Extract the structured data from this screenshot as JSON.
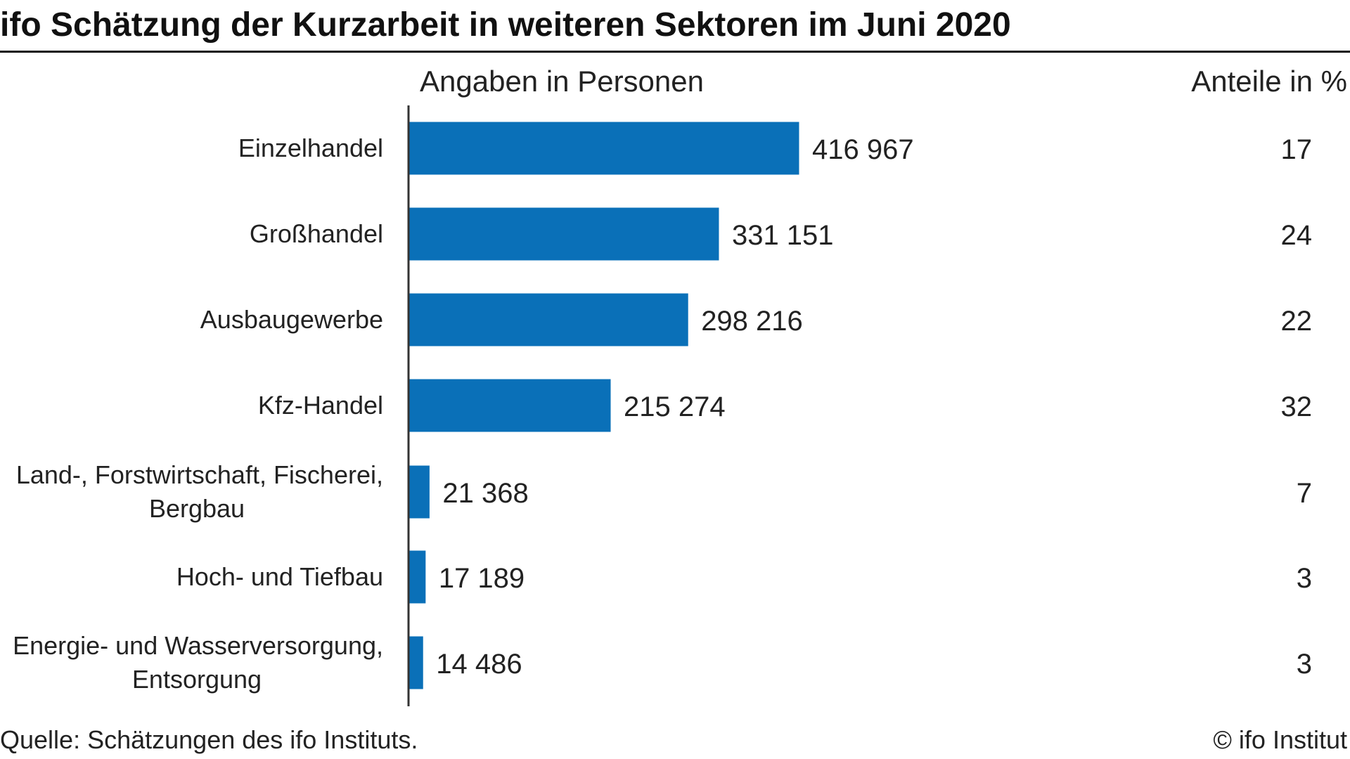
{
  "title": "ifo Schätzung der Kurzarbeit in weiteren Sektoren im Juni 2020",
  "header_left": "Angaben in Personen",
  "header_right": "Anteile in %",
  "source": "Quelle: Schätzungen des ifo Instituts.",
  "copyright": "© ifo Institut",
  "colors": {
    "bar": "#0a70b8",
    "axis": "#333333",
    "text": "#222222"
  },
  "chart_data": {
    "type": "bar",
    "orientation": "horizontal",
    "categories": [
      [
        "Einzelhandel"
      ],
      [
        "Großhandel"
      ],
      [
        "Ausbaugewerbe"
      ],
      [
        "Kfz-Handel"
      ],
      [
        "Land-, Forstwirtschaft, Fischerei,",
        "Bergbau"
      ],
      [
        "Hoch- und Tiefbau"
      ],
      [
        "Energie- und Wasserversorgung,",
        "Entsorgung"
      ]
    ],
    "values": [
      416967,
      331151,
      298216,
      215274,
      21368,
      17189,
      14486
    ],
    "value_labels": [
      "416 967",
      "331 151",
      "298 216",
      "215 274",
      "21 368",
      "17 189",
      "14 486"
    ],
    "shares": [
      "17",
      "24",
      "22",
      "32",
      "7",
      "3",
      "3"
    ],
    "xlim": [
      0,
      420000
    ],
    "grid": false,
    "legend": "none"
  }
}
